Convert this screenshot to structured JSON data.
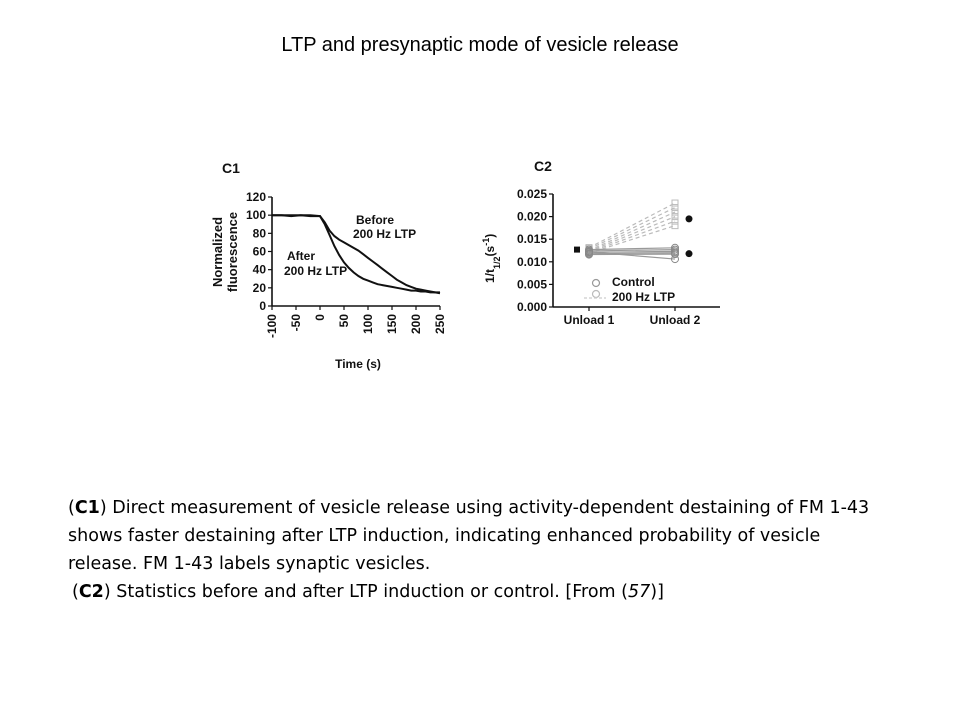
{
  "slide": {
    "title": "LTP and presynaptic mode of vesicle release"
  },
  "caption": {
    "c1_open": "(",
    "c1_label": "C1",
    "c1_text": ") Direct measurement of vesicle release using activity-dependent destaining of FM 1-43 shows faster destaining after LTP induction, indicating enhanced probability of vesicle release. FM 1-43 labels synaptic vesicles.",
    "c2_open": "(",
    "c2_label": "C2",
    "c2_text": ") Statistics before and after LTP induction or control. [From (",
    "c2_ref": "57",
    "c2_close": ")]"
  },
  "chart_data": [
    {
      "type": "line",
      "panel_label": "C1",
      "xlabel": "Time (s)",
      "ylabel_line1": "Normalized",
      "ylabel_line2": "fluorescence",
      "xlim": [
        -100,
        250
      ],
      "ylim": [
        0,
        120
      ],
      "x_ticks": [
        -100,
        -50,
        0,
        50,
        100,
        150,
        200,
        250
      ],
      "y_ticks": [
        0,
        20,
        40,
        60,
        80,
        100,
        120
      ],
      "series": [
        {
          "name_line1": "Before",
          "name_line2": "200 Hz LTP",
          "x": [
            -100,
            -80,
            -60,
            -40,
            -20,
            0,
            10,
            20,
            30,
            40,
            50,
            60,
            70,
            80,
            90,
            100,
            110,
            120,
            130,
            140,
            150,
            160,
            170,
            180,
            190,
            200,
            210,
            220,
            230,
            240,
            250
          ],
          "y": [
            100,
            100,
            100,
            100,
            100,
            99,
            92,
            83,
            77,
            73,
            70,
            67,
            64,
            61,
            57,
            53,
            49,
            45,
            41,
            37,
            33,
            29,
            26,
            23,
            21,
            19,
            18,
            17,
            16,
            15,
            14
          ]
        },
        {
          "name_line1": "After",
          "name_line2": "200 Hz LTP",
          "x": [
            -100,
            -80,
            -60,
            -40,
            -20,
            0,
            10,
            20,
            30,
            40,
            50,
            60,
            70,
            80,
            90,
            100,
            110,
            120,
            130,
            140,
            150,
            160,
            170,
            180,
            190,
            200,
            210,
            220,
            230,
            240,
            250
          ],
          "y": [
            100,
            100,
            99,
            100,
            99,
            99,
            90,
            78,
            66,
            56,
            48,
            42,
            37,
            33,
            30,
            28,
            26,
            24,
            23,
            22,
            21,
            20,
            19,
            18,
            17,
            17,
            16,
            16,
            15,
            15,
            15
          ]
        }
      ]
    },
    {
      "type": "scatter",
      "panel_label": "C2",
      "ylabel": "1/t",
      "ylabel_sub": "1/2",
      "ylabel_unit": "(s",
      "ylabel_sup": "-1",
      "ylabel_close": ")",
      "categories": [
        "Unload 1",
        "Unload 2"
      ],
      "ylim": [
        0,
        0.025
      ],
      "y_ticks": [
        "0.000",
        "0.005",
        "0.010",
        "0.015",
        "0.020",
        "0.025"
      ],
      "legend": [
        "Control",
        "200 Hz LTP"
      ],
      "means": [
        {
          "category": "Unload 1",
          "value": 0.0127
        },
        {
          "category": "Unload 2 (LTP)",
          "value": 0.0195
        },
        {
          "category": "Unload 2 (Control)",
          "value": 0.0118
        }
      ],
      "ltp_pairs": [
        [
          0.0131,
          0.023
        ],
        [
          0.0128,
          0.022
        ],
        [
          0.0125,
          0.021
        ],
        [
          0.0123,
          0.02
        ],
        [
          0.0121,
          0.019
        ],
        [
          0.0119,
          0.018
        ]
      ],
      "control_pairs": [
        [
          0.0127,
          0.0131
        ],
        [
          0.0124,
          0.0127
        ],
        [
          0.0121,
          0.0123
        ],
        [
          0.0118,
          0.012
        ],
        [
          0.0116,
          0.0117
        ],
        [
          0.0122,
          0.0106
        ]
      ]
    }
  ]
}
